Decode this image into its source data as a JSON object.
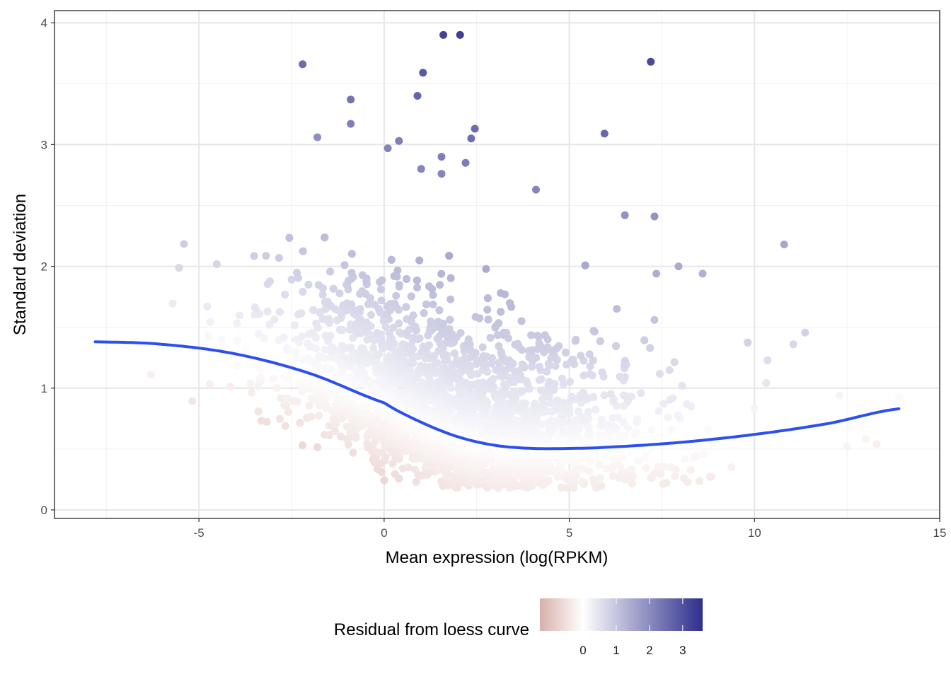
{
  "chart_data": {
    "type": "scatter",
    "title": "",
    "xlabel": "Mean expression (log(RPKM)",
    "ylabel": "Standard deviation",
    "xlim": [
      -8.9,
      15.0
    ],
    "ylim": [
      -0.07,
      4.1
    ],
    "x_ticks": [
      -5,
      0,
      5,
      10,
      15
    ],
    "x_tick_labels": [
      "-5",
      "0",
      "5",
      "10",
      "15"
    ],
    "y_ticks": [
      0,
      1,
      2,
      3,
      4
    ],
    "y_tick_labels": [
      "0",
      "1",
      "2",
      "3",
      "4"
    ],
    "grid": true,
    "legend": {
      "title": "Residual from loess curve",
      "position": "bottom",
      "type": "colorbar",
      "range": [
        -1.3,
        3.6
      ],
      "ticks": [
        0,
        1,
        2,
        3
      ],
      "tick_labels": [
        "0",
        "1",
        "2",
        "3"
      ],
      "low_color": "#d8b0aa",
      "mid_color": "#ffffff",
      "high_color": "#2e2e8c"
    },
    "loess_curve": {
      "name": "loess fit",
      "color": "#2b4ff2",
      "x": [
        -7.8,
        -6,
        -4,
        -2,
        0,
        1,
        2,
        3,
        4,
        5,
        6,
        8,
        10,
        12,
        13.9
      ],
      "y": [
        1.38,
        1.36,
        1.28,
        1.12,
        0.88,
        0.72,
        0.6,
        0.53,
        0.505,
        0.505,
        0.515,
        0.555,
        0.62,
        0.71,
        0.83
      ]
    },
    "highlighted_points": [
      {
        "x": 1.6,
        "y": 3.9
      },
      {
        "x": 2.05,
        "y": 3.9
      },
      {
        "x": -2.2,
        "y": 3.66
      },
      {
        "x": 7.2,
        "y": 3.68
      },
      {
        "x": 1.05,
        "y": 3.59
      },
      {
        "x": 0.9,
        "y": 3.4
      },
      {
        "x": -0.9,
        "y": 3.37
      },
      {
        "x": -0.9,
        "y": 3.17
      },
      {
        "x": -1.8,
        "y": 3.06
      },
      {
        "x": 2.45,
        "y": 3.13
      },
      {
        "x": 2.35,
        "y": 3.05
      },
      {
        "x": 5.95,
        "y": 3.09
      },
      {
        "x": 0.4,
        "y": 3.03
      },
      {
        "x": 0.1,
        "y": 2.97
      },
      {
        "x": 1.55,
        "y": 2.9
      },
      {
        "x": 2.2,
        "y": 2.85
      },
      {
        "x": 1.0,
        "y": 2.8
      },
      {
        "x": 1.55,
        "y": 2.76
      },
      {
        "x": 4.1,
        "y": 2.63
      },
      {
        "x": 6.5,
        "y": 2.42
      },
      {
        "x": 7.3,
        "y": 2.41
      },
      {
        "x": 10.8,
        "y": 2.18
      },
      {
        "x": 7.95,
        "y": 2.0
      },
      {
        "x": 8.6,
        "y": 1.94
      },
      {
        "x": 7.35,
        "y": 1.94
      },
      {
        "x": 11.05,
        "y": 1.36
      },
      {
        "x": -6.3,
        "y": 1.11
      },
      {
        "x": 12.3,
        "y": 0.94
      },
      {
        "x": 13.0,
        "y": 0.58
      },
      {
        "x": 13.3,
        "y": 0.54
      },
      {
        "x": 12.5,
        "y": 0.52
      },
      {
        "x": 13.9,
        "y": 0.92
      }
    ]
  }
}
